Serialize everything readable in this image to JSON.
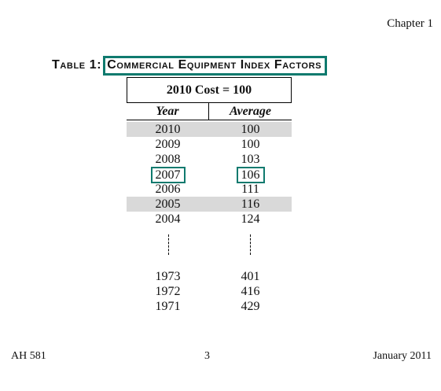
{
  "header": {
    "chapter": "Chapter 1"
  },
  "table": {
    "label": "Table 1:",
    "title": "Commercial Equipment Index Factors",
    "cost_base": "2010 Cost = 100",
    "columns": [
      "Year",
      "Average"
    ],
    "rows": [
      {
        "year": "2010",
        "average": "100"
      },
      {
        "year": "2009",
        "average": "100"
      },
      {
        "year": "2008",
        "average": "103"
      },
      {
        "year": "2007",
        "average": "106"
      },
      {
        "year": "2006",
        "average": "111"
      },
      {
        "year": "2005",
        "average": "116"
      },
      {
        "year": "2004",
        "average": "124"
      },
      {
        "year": "1973",
        "average": "401"
      },
      {
        "year": "1972",
        "average": "416"
      },
      {
        "year": "1971",
        "average": "429"
      }
    ]
  },
  "footer": {
    "left": "AH 581",
    "page": "3",
    "date": "January 2011"
  }
}
